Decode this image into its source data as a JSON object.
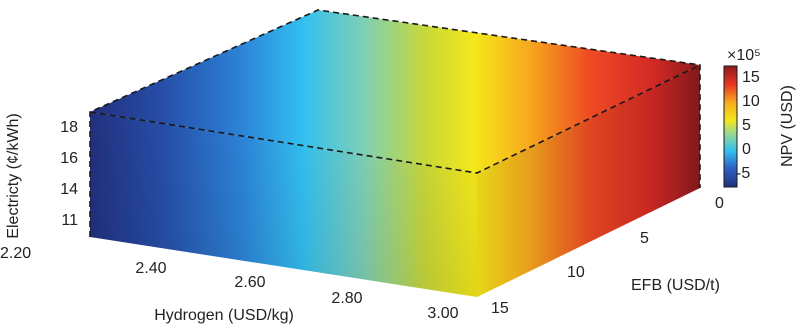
{
  "chart_data": {
    "type": "surface-3d",
    "x_axis": {
      "label": "Hydrogen (USD/kg)",
      "ticks": [
        "2.20",
        "2.40",
        "2.60",
        "2.80",
        "3.00"
      ],
      "range": [
        2.2,
        3.0
      ]
    },
    "y_axis": {
      "label": "EFB (USD/t)",
      "ticks": [
        "0",
        "5",
        "10",
        "15"
      ],
      "range": [
        0,
        15
      ]
    },
    "z_axis": {
      "label": "Electricty (¢/kWh)",
      "ticks": [
        "11",
        "14",
        "16",
        "18"
      ],
      "range": [
        10,
        19
      ]
    },
    "colorbar": {
      "label": "NPV (USD)",
      "multiplier": "×10⁵",
      "ticks": [
        "15",
        "10",
        "5",
        "0",
        "-5"
      ],
      "range": [
        -8,
        17
      ],
      "colormap": "jet"
    },
    "values_note": "NPV increases with hydrogen price; from about -8 at 2.20 USD/kg to about 17 at 3.00 USD/kg"
  }
}
